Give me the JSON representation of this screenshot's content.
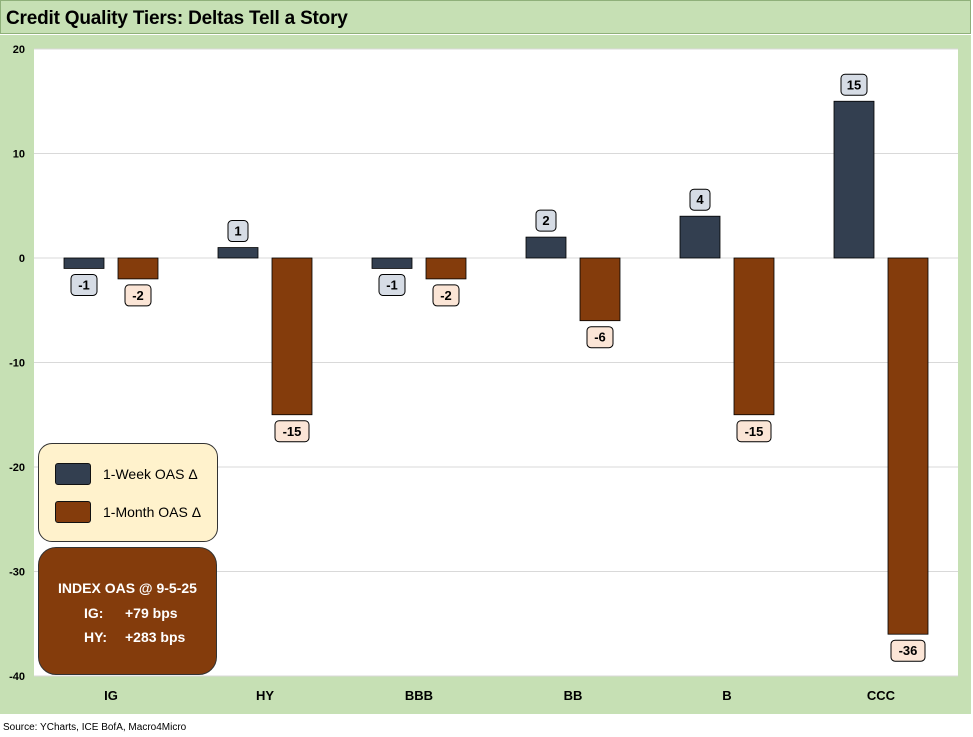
{
  "header": {
    "title": "Credit Quality Tiers: Deltas Tell a Story"
  },
  "footer": {
    "source": "Source: YCharts, ICE BofA, Macro4Micro"
  },
  "legend": {
    "items": [
      {
        "label": "1-Week OAS Δ",
        "color": "#333f50"
      },
      {
        "label": "1-Month OAS Δ",
        "color": "#843c0c"
      }
    ]
  },
  "index_box": {
    "title": "INDEX OAS @ 9-5-25",
    "rows": [
      {
        "name": "IG:",
        "value": "+79 bps"
      },
      {
        "name": "HY:",
        "value": "+283 bps"
      }
    ],
    "background": "#843c0c"
  },
  "colors": {
    "frame": "#c6e0b4",
    "week_bar": "#333f50",
    "month_bar": "#843c0c",
    "week_label_fill": "#d6dce5",
    "month_label_fill": "#fbe5d6"
  },
  "chart_data": {
    "type": "bar",
    "title": "Credit Quality Tiers: Deltas Tell a Story",
    "xlabel": "",
    "ylabel": "",
    "categories": [
      "IG",
      "HY",
      "BBB",
      "BB",
      "B",
      "CCC"
    ],
    "series": [
      {
        "name": "1-Week OAS Δ",
        "values": [
          -1,
          1,
          -1,
          2,
          4,
          15
        ]
      },
      {
        "name": "1-Month OAS Δ",
        "values": [
          -2,
          -15,
          -2,
          -6,
          -15,
          -36
        ]
      }
    ],
    "ylim": [
      -40,
      20
    ],
    "yticks": [
      -40,
      -30,
      -20,
      -10,
      0,
      10,
      20
    ],
    "grid": true,
    "data_labels": true,
    "legend_position": "bottom-left"
  }
}
